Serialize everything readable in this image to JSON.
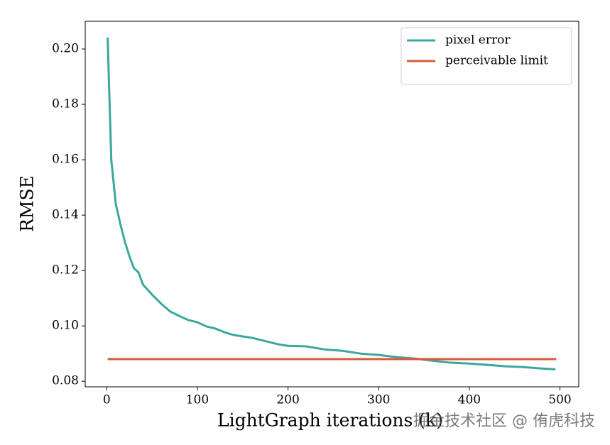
{
  "chart_data": {
    "type": "line",
    "xlabel": "LightGraph iterations (k)",
    "ylabel": "RMSE",
    "watermark": "掘金技术社区 @ 侑虎科技",
    "xlim": [
      -23.75,
      520.75
    ],
    "ylim": [
      0.078,
      0.21
    ],
    "xticks": [
      0,
      100,
      200,
      300,
      400,
      500
    ],
    "yticks": [
      0.08,
      {
        "value": 0.1,
        "label": "0.10"
      },
      0.12,
      0.14,
      0.16,
      0.18,
      {
        "value": 0.2,
        "label": "0.20"
      }
    ],
    "legend": "upper right",
    "series": [
      {
        "name": "pixel error",
        "color": "#3aa89a",
        "x": [
          1,
          5,
          10,
          15,
          20,
          25,
          30,
          35,
          40,
          50,
          60,
          70,
          80,
          90,
          100,
          110,
          120,
          130,
          140,
          150,
          160,
          170,
          180,
          190,
          200,
          220,
          240,
          260,
          280,
          300,
          320,
          340,
          360,
          380,
          400,
          420,
          440,
          460,
          480,
          495
        ],
        "values": [
          0.2041,
          0.16,
          0.144,
          0.1368,
          0.1304,
          0.1252,
          0.1208,
          0.1193,
          0.1149,
          0.1113,
          0.108,
          0.1052,
          0.1036,
          0.1021,
          0.1013,
          0.0998,
          0.099,
          0.0977,
          0.0967,
          0.0962,
          0.0957,
          0.0949,
          0.0941,
          0.0933,
          0.0928,
          0.0926,
          0.0915,
          0.091,
          0.09,
          0.0895,
          0.0887,
          0.0882,
          0.0874,
          0.0867,
          0.0864,
          0.0859,
          0.0854,
          0.0851,
          0.0846,
          0.0843
        ]
      },
      {
        "name": "perceivable limit",
        "color": "#d65a3a",
        "x": [
          1,
          496
        ],
        "values": [
          0.088,
          0.088
        ]
      }
    ]
  }
}
